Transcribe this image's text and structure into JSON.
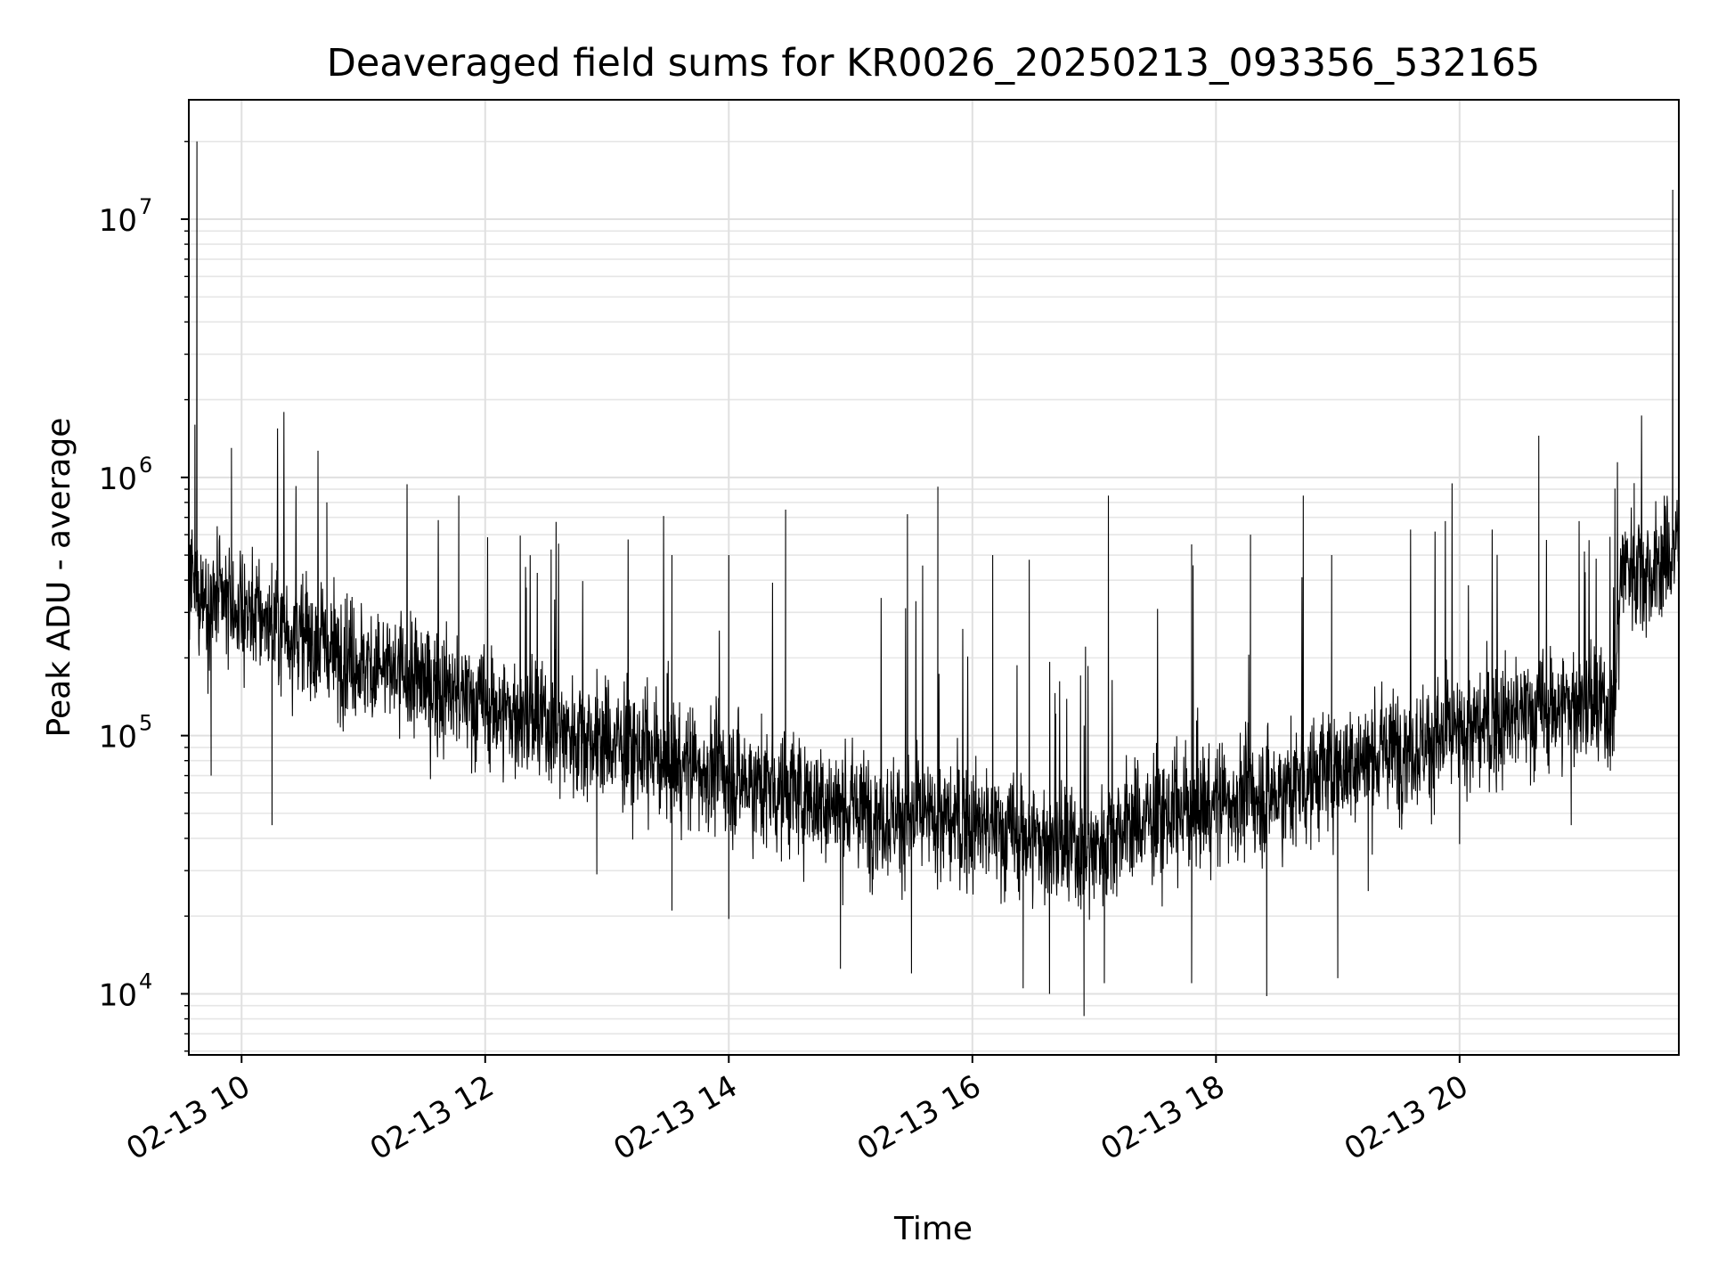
{
  "chart_data": {
    "type": "line",
    "title": "Deaveraged field sums for KR0026_20250213_093356_532165",
    "xlabel": "Time",
    "ylabel": "Peak ADU - average",
    "x_axis": {
      "scale": "time",
      "range": [
        "2025-02-13 09:34",
        "2025-02-13 21:48"
      ],
      "ticks": [
        {
          "time": "2025-02-13 10:00",
          "label": "02-13 10"
        },
        {
          "time": "2025-02-13 12:00",
          "label": "02-13 12"
        },
        {
          "time": "2025-02-13 14:00",
          "label": "02-13 14"
        },
        {
          "time": "2025-02-13 16:00",
          "label": "02-13 16"
        },
        {
          "time": "2025-02-13 18:00",
          "label": "02-13 18"
        },
        {
          "time": "2025-02-13 20:00",
          "label": "02-13 20"
        }
      ]
    },
    "y_axis": {
      "scale": "log",
      "range": [
        5800,
        29000000
      ],
      "ticks": [
        {
          "value": 10000,
          "base": "10",
          "exp": "4"
        },
        {
          "value": 100000,
          "base": "10",
          "exp": "5"
        },
        {
          "value": 1000000,
          "base": "10",
          "exp": "6"
        },
        {
          "value": 10000000,
          "base": "10",
          "exp": "7"
        }
      ]
    },
    "grid": true,
    "series": [
      {
        "color": "#000000",
        "baseline": [
          [
            "2025-02-13 09:34",
            380000
          ],
          [
            "2025-02-13 09:50",
            320000
          ],
          [
            "2025-02-13 10:05",
            300000
          ],
          [
            "2025-02-13 10:30",
            240000
          ],
          [
            "2025-02-13 11:00",
            190000
          ],
          [
            "2025-02-13 11:30",
            160000
          ],
          [
            "2025-02-13 12:00",
            130000
          ],
          [
            "2025-02-13 12:30",
            110000
          ],
          [
            "2025-02-13 13:00",
            95000
          ],
          [
            "2025-02-13 13:30",
            80000
          ],
          [
            "2025-02-13 14:00",
            70000
          ],
          [
            "2025-02-13 14:30",
            60000
          ],
          [
            "2025-02-13 15:00",
            52000
          ],
          [
            "2025-02-13 15:30",
            48000
          ],
          [
            "2025-02-13 16:00",
            45000
          ],
          [
            "2025-02-13 16:30",
            40000
          ],
          [
            "2025-02-13 16:55",
            35000
          ],
          [
            "2025-02-13 17:15",
            45000
          ],
          [
            "2025-02-13 17:40",
            50000
          ],
          [
            "2025-02-13 18:00",
            55000
          ],
          [
            "2025-02-13 18:30",
            60000
          ],
          [
            "2025-02-13 19:00",
            75000
          ],
          [
            "2025-02-13 19:30",
            90000
          ],
          [
            "2025-02-13 20:00",
            100000
          ],
          [
            "2025-02-13 20:30",
            120000
          ],
          [
            "2025-02-13 21:00",
            135000
          ],
          [
            "2025-02-13 21:16",
            120000
          ],
          [
            "2025-02-13 21:20",
            480000
          ],
          [
            "2025-02-13 21:35",
            420000
          ],
          [
            "2025-02-13 21:48",
            550000
          ]
        ],
        "peaks": [
          [
            "2025-02-13 09:38",
            20000000
          ],
          [
            "2025-02-13 09:37",
            1600000
          ],
          [
            "2025-02-13 09:55",
            1300000
          ],
          [
            "2025-02-13 10:42",
            800000
          ],
          [
            "2025-02-13 11:47",
            850000
          ],
          [
            "2025-02-13 13:32",
            500000
          ],
          [
            "2025-02-13 14:00",
            500000
          ],
          [
            "2025-02-13 14:28",
            750000
          ],
          [
            "2025-02-13 15:28",
            720000
          ],
          [
            "2025-02-13 15:43",
            920000
          ],
          [
            "2025-02-13 16:10",
            500000
          ],
          [
            "2025-02-13 16:28",
            480000
          ],
          [
            "2025-02-13 17:07",
            850000
          ],
          [
            "2025-02-13 17:48",
            550000
          ],
          [
            "2025-02-13 18:17",
            600000
          ],
          [
            "2025-02-13 18:43",
            850000
          ],
          [
            "2025-02-13 18:57",
            500000
          ],
          [
            "2025-02-13 20:39",
            1450000
          ],
          [
            "2025-02-13 21:26",
            950000
          ],
          [
            "2025-02-13 21:45",
            13000000
          ]
        ],
        "troughs": [
          [
            "2025-02-13 09:45",
            70000
          ],
          [
            "2025-02-13 10:15",
            45000
          ],
          [
            "2025-02-13 12:55",
            29000
          ],
          [
            "2025-02-13 13:32",
            21000
          ],
          [
            "2025-02-13 14:00",
            19500
          ],
          [
            "2025-02-13 14:55",
            12500
          ],
          [
            "2025-02-13 15:30",
            12000
          ],
          [
            "2025-02-13 16:25",
            10500
          ],
          [
            "2025-02-13 16:38",
            10000
          ],
          [
            "2025-02-13 16:55",
            8200
          ],
          [
            "2025-02-13 17:05",
            11000
          ],
          [
            "2025-02-13 17:48",
            11000
          ],
          [
            "2025-02-13 18:25",
            9800
          ],
          [
            "2025-02-13 19:00",
            11500
          ],
          [
            "2025-02-13 19:15",
            25000
          ],
          [
            "2025-02-13 20:00",
            38000
          ],
          [
            "2025-02-13 20:55",
            45000
          ]
        ]
      }
    ]
  }
}
